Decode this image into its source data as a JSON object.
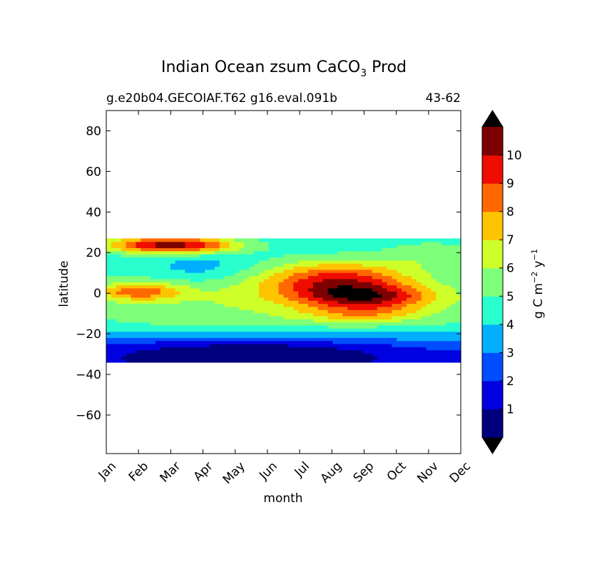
{
  "chart_data": {
    "type": "heatmap",
    "title": {
      "main": "Indian Ocean zsum CaCO",
      "subscript": "3",
      "suffix": "Prod"
    },
    "subtitle_left": "g.e20b04.GECOIAF.T62 g16.eval.091b",
    "subtitle_right": "43-62",
    "xlabel": "month",
    "ylabel": "latitude",
    "x_ticks": [
      "Jan",
      "Feb",
      "Mar",
      "Apr",
      "May",
      "Jun",
      "Jul",
      "Aug",
      "Sep",
      "Oct",
      "Nov",
      "Dec"
    ],
    "y_ticks": [
      80,
      60,
      40,
      20,
      0,
      -20,
      -40,
      -60
    ],
    "ylim": [
      -79,
      90
    ],
    "xlim": [
      0,
      11
    ],
    "data_lat_range": [
      -34,
      27
    ],
    "colorbar": {
      "label": "g C m",
      "label_sup1": "−2",
      "label_mid": " y",
      "label_sup2": "−1",
      "levels": [
        0,
        1,
        2,
        3,
        4,
        5,
        6,
        7,
        8,
        9,
        10,
        11
      ],
      "tick_labels": [
        "1",
        "2",
        "3",
        "4",
        "5",
        "6",
        "7",
        "8",
        "9",
        "10"
      ],
      "colors": [
        "#00007f",
        "#0000e0",
        "#004cff",
        "#00b0ff",
        "#29ffce",
        "#7dff7a",
        "#ceff29",
        "#ffc400",
        "#ff6800",
        "#ee0d00",
        "#7f0000"
      ],
      "extend_under_color": "#000000",
      "extend_over_color": "#000000",
      "extend": "both"
    },
    "field_blobs": [
      {
        "month": 5.5,
        "lat": -3,
        "sx": 6.5,
        "sy": 14,
        "amp": 2.2
      },
      {
        "month": 7.2,
        "lat": 6,
        "sx": 1.6,
        "sy": 7,
        "amp": 4.5
      },
      {
        "month": 8.2,
        "lat": -2,
        "sx": 1.4,
        "sy": 4,
        "amp": 3.5
      },
      {
        "month": 8.0,
        "lat": -10,
        "sx": 1.3,
        "sy": 3,
        "amp": 2.0
      },
      {
        "month": 1.0,
        "lat": 1,
        "sx": 0.9,
        "sy": 3,
        "amp": 3.5
      },
      {
        "month": 2.0,
        "lat": 24,
        "sx": 1.5,
        "sy": 3,
        "amp": 6.5
      },
      {
        "month": 3.0,
        "lat": 12,
        "sx": 1.2,
        "sy": 5,
        "amp": -1.2
      },
      {
        "month": 4.5,
        "lat": -28,
        "sx": 3.5,
        "sy": 5,
        "amp": -2.5
      },
      {
        "month": 10.2,
        "lat": 20,
        "sx": 1.2,
        "sy": 5,
        "amp": 1.5
      }
    ],
    "field_base": 3.8,
    "field_south_drop": {
      "from_lat": -15,
      "per_deg": 0.12
    }
  }
}
